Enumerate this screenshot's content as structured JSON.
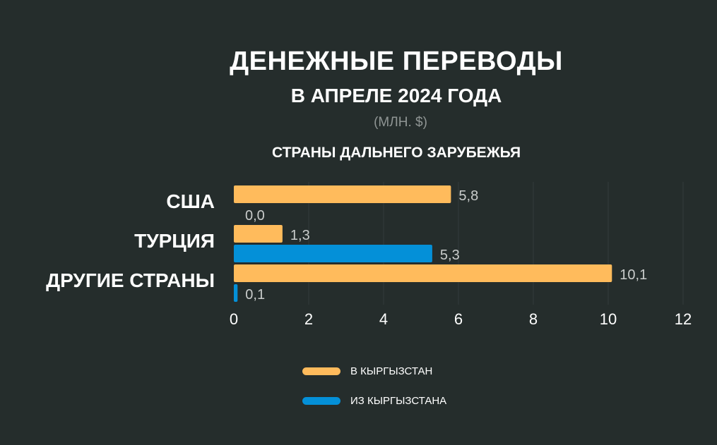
{
  "title": "ДЕНЕЖНЫЕ ПЕРЕВОДЫ",
  "subtitle": "В АПРЕЛЕ 2024 ГОДА",
  "units": "(МЛН. $)",
  "section": "СТРАНЫ ДАЛЬНЕГО ЗАРУБЕЖЬЯ",
  "colors": {
    "background": "#252d2c",
    "in": "#ffbb5c",
    "out": "#0490d8",
    "value_label": "#c9cccb",
    "grid": "#343c3b"
  },
  "chart_data": {
    "type": "bar",
    "orientation": "horizontal",
    "categories": [
      "США",
      "ТУРЦИЯ",
      "ДРУГИЕ СТРАНЫ"
    ],
    "series": [
      {
        "name": "В КЫРГЫЗСТАН",
        "values": [
          5.8,
          1.3,
          10.1
        ],
        "labels": [
          "5,8",
          "1,3",
          "10,1"
        ]
      },
      {
        "name": "ИЗ КЫРГЫЗСТАНА",
        "values": [
          0.0,
          5.3,
          0.1
        ],
        "labels": [
          "0,0",
          "5,3",
          "0,1"
        ]
      }
    ],
    "xlim": [
      0,
      12
    ],
    "xticks": [
      "0",
      "2",
      "4",
      "6",
      "8",
      "10",
      "12"
    ],
    "grid": true,
    "legend_position": "bottom"
  }
}
